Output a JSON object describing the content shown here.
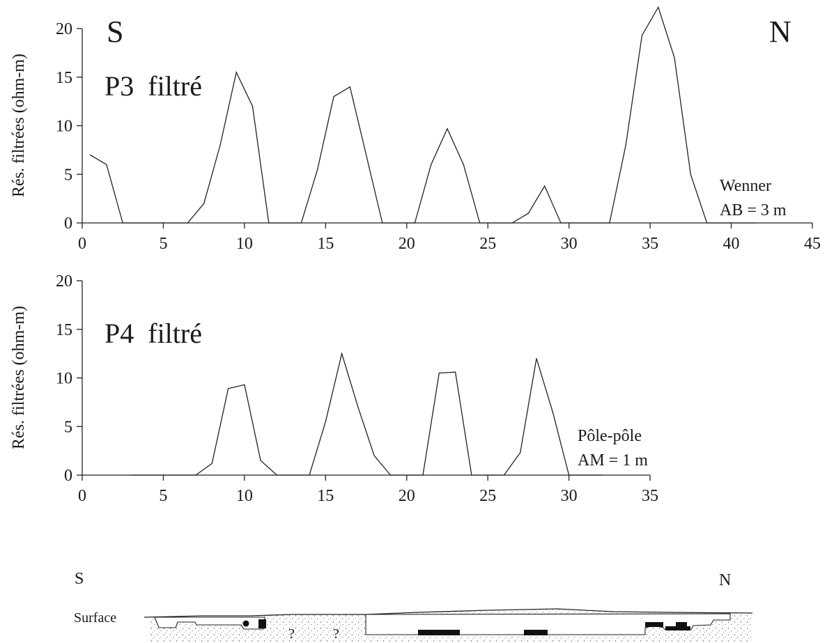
{
  "chart_data": [
    {
      "type": "line",
      "label": "P3  filtré",
      "ylabel": "Rés. filtrées (ohm-m)",
      "xlabel": "",
      "xlim": [
        0,
        45
      ],
      "ylim": [
        0,
        20
      ],
      "x_ticks": [
        0,
        5,
        10,
        15,
        20,
        25,
        30,
        35,
        40,
        45
      ],
      "y_ticks": [
        0,
        5,
        10,
        15,
        20
      ],
      "corner_labels": {
        "left": "S",
        "right": "N"
      },
      "method": [
        "Wenner",
        "AB = 3 m"
      ],
      "x": [
        0.5,
        1.5,
        2.5,
        6.5,
        7.5,
        8.5,
        9.5,
        10.5,
        11.5,
        13.5,
        14.5,
        15.5,
        16.5,
        17.5,
        18.5,
        20.5,
        21.5,
        22.5,
        23.5,
        24.5,
        26.5,
        27.5,
        28.5,
        29.5,
        32.5,
        33.5,
        34.5,
        35.5,
        36.5,
        37.5,
        38.5,
        41.5
      ],
      "y": [
        7,
        6,
        0,
        0,
        2,
        8,
        15.5,
        12,
        0,
        0,
        5.5,
        13,
        14,
        7,
        0,
        0,
        6,
        9.7,
        6,
        0,
        0,
        1,
        3.8,
        0,
        0,
        8,
        19.3,
        22.2,
        17,
        5,
        0,
        0
      ]
    },
    {
      "type": "line",
      "label": "P4  filtré",
      "ylabel": "Rés. filtrées (ohm-m)",
      "xlabel": "",
      "xlim": [
        0,
        35
      ],
      "ylim": [
        0,
        20
      ],
      "x_ticks": [
        0,
        5,
        10,
        15,
        20,
        25,
        30,
        35
      ],
      "y_ticks": [
        0,
        5,
        10,
        15,
        20
      ],
      "method": [
        "Pôle-pôle",
        "AM = 1 m"
      ],
      "x": [
        3,
        7,
        8,
        9,
        10,
        11,
        12,
        14,
        15,
        16,
        17,
        18,
        19,
        21,
        22,
        23,
        24,
        26,
        27,
        28,
        29,
        30,
        32
      ],
      "y": [
        0,
        0,
        1.2,
        8.9,
        9.3,
        1.5,
        0,
        0,
        5.5,
        12.5,
        7,
        2,
        0,
        0,
        10.5,
        10.6,
        0,
        0,
        2.3,
        12,
        6.5,
        0,
        0
      ]
    }
  ],
  "section": {
    "left_label": "S",
    "right_label": "N",
    "surface_label": "Surface",
    "unknown_marks": [
      "?",
      "?"
    ]
  }
}
